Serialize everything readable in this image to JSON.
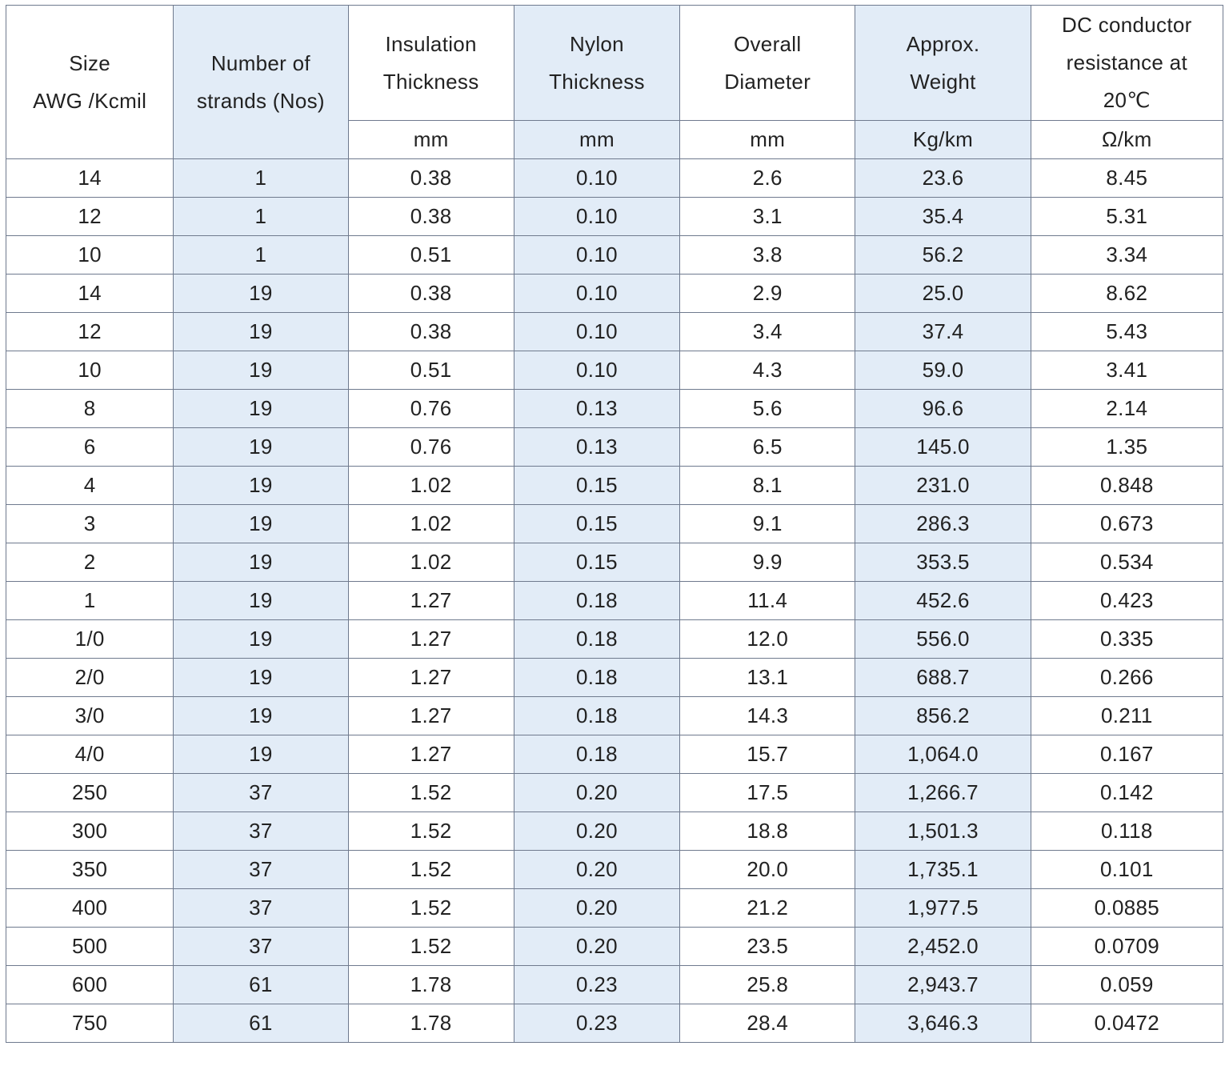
{
  "headers": {
    "size_line1": "Size",
    "size_line2": "AWG /Kcmil",
    "strands_line1": "Number of",
    "strands_line2": "strands (Nos)",
    "insulation_line1": "Insulation",
    "insulation_line2": "Thickness",
    "nylon_line1": "Nylon",
    "nylon_line2": "Thickness",
    "diameter_line1": "Overall",
    "diameter_line2": "Diameter",
    "weight_line1": "Approx.",
    "weight_line2": "Weight",
    "resistance_line1": "DC conductor",
    "resistance_line2": "resistance at",
    "resistance_line3": "20℃"
  },
  "units": [
    "mm",
    "mm",
    "mm",
    "Kg/km",
    "Ω/km"
  ],
  "rows": [
    [
      "14",
      "1",
      "0.38",
      "0.10",
      "2.6",
      "23.6",
      "8.45"
    ],
    [
      "12",
      "1",
      "0.38",
      "0.10",
      "3.1",
      "35.4",
      "5.31"
    ],
    [
      "10",
      "1",
      "0.51",
      "0.10",
      "3.8",
      "56.2",
      "3.34"
    ],
    [
      "14",
      "19",
      "0.38",
      "0.10",
      "2.9",
      "25.0",
      "8.62"
    ],
    [
      "12",
      "19",
      "0.38",
      "0.10",
      "3.4",
      "37.4",
      "5.43"
    ],
    [
      "10",
      "19",
      "0.51",
      "0.10",
      "4.3",
      "59.0",
      "3.41"
    ],
    [
      "8",
      "19",
      "0.76",
      "0.13",
      "5.6",
      "96.6",
      "2.14"
    ],
    [
      "6",
      "19",
      "0.76",
      "0.13",
      "6.5",
      "145.0",
      "1.35"
    ],
    [
      "4",
      "19",
      "1.02",
      "0.15",
      "8.1",
      "231.0",
      "0.848"
    ],
    [
      "3",
      "19",
      "1.02",
      "0.15",
      "9.1",
      "286.3",
      "0.673"
    ],
    [
      "2",
      "19",
      "1.02",
      "0.15",
      "9.9",
      "353.5",
      "0.534"
    ],
    [
      "1",
      "19",
      "1.27",
      "0.18",
      "11.4",
      "452.6",
      "0.423"
    ],
    [
      "1/0",
      "19",
      "1.27",
      "0.18",
      "12.0",
      "556.0",
      "0.335"
    ],
    [
      "2/0",
      "19",
      "1.27",
      "0.18",
      "13.1",
      "688.7",
      "0.266"
    ],
    [
      "3/0",
      "19",
      "1.27",
      "0.18",
      "14.3",
      "856.2",
      "0.211"
    ],
    [
      "4/0",
      "19",
      "1.27",
      "0.18",
      "15.7",
      "1,064.0",
      "0.167"
    ],
    [
      "250",
      "37",
      "1.52",
      "0.20",
      "17.5",
      "1,266.7",
      "0.142"
    ],
    [
      "300",
      "37",
      "1.52",
      "0.20",
      "18.8",
      "1,501.3",
      "0.118"
    ],
    [
      "350",
      "37",
      "1.52",
      "0.20",
      "20.0",
      "1,735.1",
      "0.101"
    ],
    [
      "400",
      "37",
      "1.52",
      "0.20",
      "21.2",
      "1,977.5",
      "0.0885"
    ],
    [
      "500",
      "37",
      "1.52",
      "0.20",
      "23.5",
      "2,452.0",
      "0.0709"
    ],
    [
      "600",
      "61",
      "1.78",
      "0.23",
      "25.8",
      "2,943.7",
      "0.059"
    ],
    [
      "750",
      "61",
      "1.78",
      "0.23",
      "28.4",
      "3,646.3",
      "0.0472"
    ]
  ],
  "colors": {
    "shade": "#e2ecf7",
    "border": "#6f7a8e",
    "text": "#222222"
  }
}
